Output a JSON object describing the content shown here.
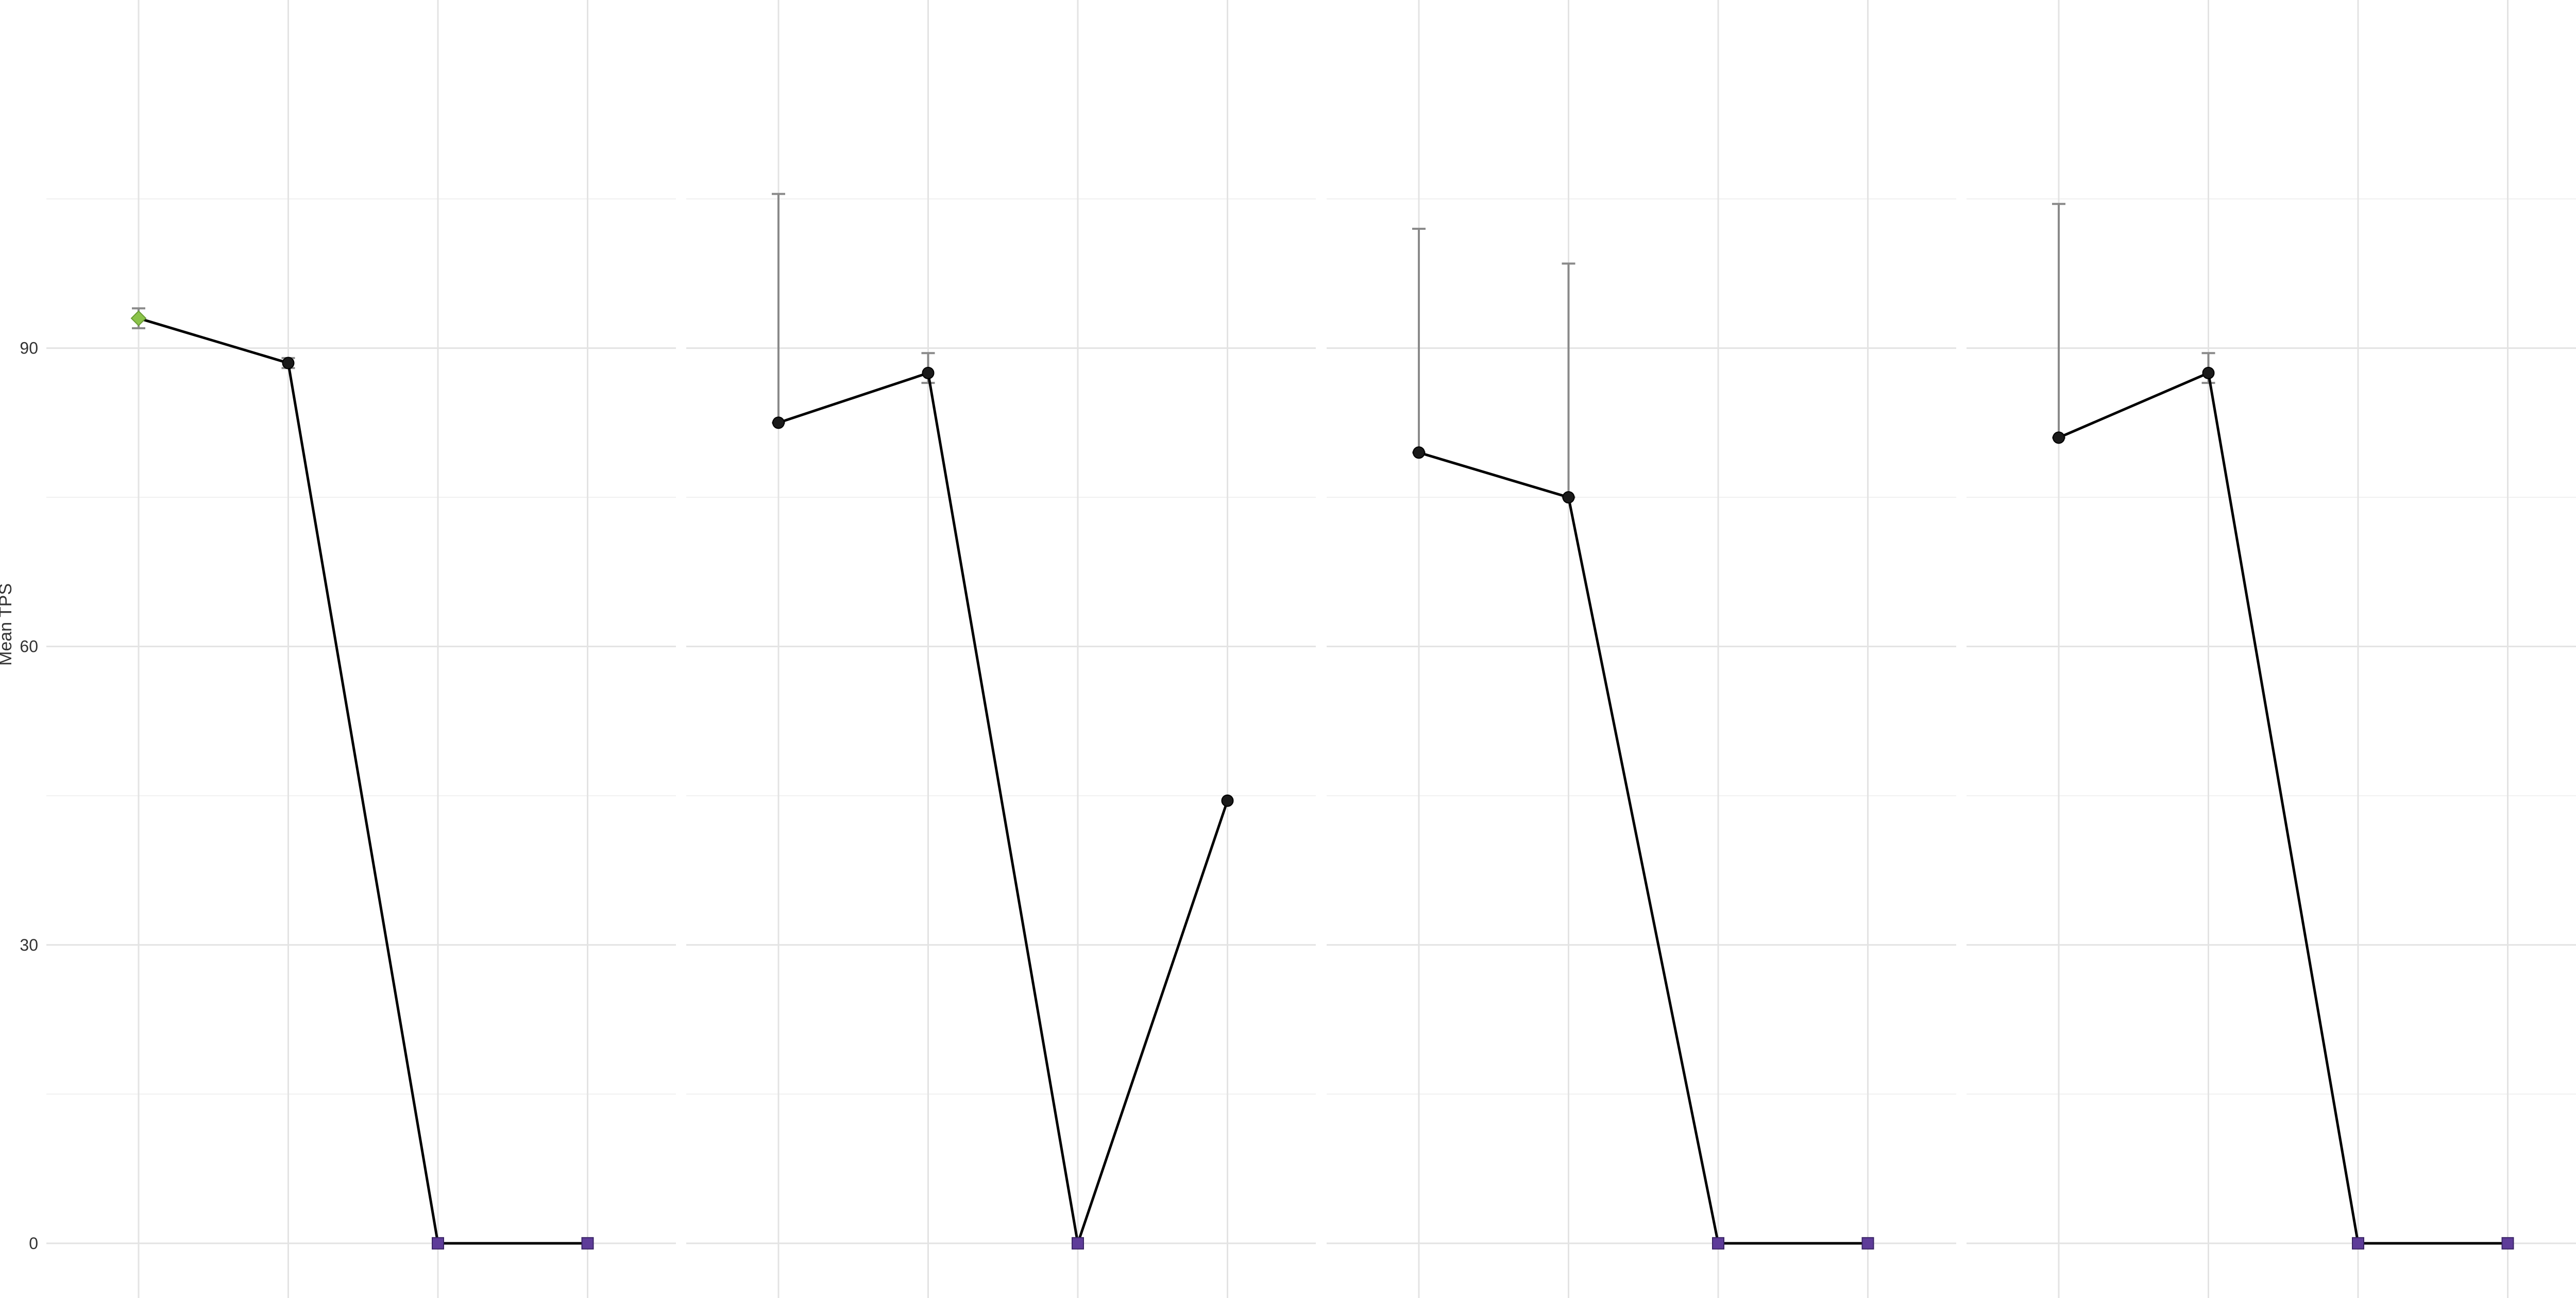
{
  "chart_data": {
    "type": "line",
    "ylabel": "Mean TPS",
    "ylim": [
      -5.5,
      125
    ],
    "yticks": [
      0,
      30,
      60,
      90
    ],
    "ytick_labels": [
      "0",
      "30",
      "60",
      "90"
    ],
    "x_positions": 4,
    "grid": true,
    "legend": "none",
    "panels": [
      {
        "points": [
          {
            "x": 1,
            "y": 93.0,
            "err_low": 92.0,
            "err_high": 94.0,
            "color": "#8bc34a",
            "shape": "diamond"
          },
          {
            "x": 2,
            "y": 88.5,
            "err_low": 88.0,
            "err_high": 89.0,
            "color": "#1a1a1a",
            "shape": "circle"
          },
          {
            "x": 3,
            "y": 0,
            "err_low": null,
            "err_high": null,
            "color": "#5e3c99",
            "shape": "square"
          },
          {
            "x": 4,
            "y": 0,
            "err_low": null,
            "err_high": null,
            "color": "#5e3c99",
            "shape": "square"
          }
        ]
      },
      {
        "points": [
          {
            "x": 1,
            "y": 82.5,
            "err_low": 82.5,
            "err_high": 105.5,
            "color": "#1a1a1a",
            "shape": "circle"
          },
          {
            "x": 2,
            "y": 87.5,
            "err_low": 86.5,
            "err_high": 89.5,
            "color": "#1a1a1a",
            "shape": "circle"
          },
          {
            "x": 3,
            "y": 0,
            "err_low": null,
            "err_high": null,
            "color": "#5e3c99",
            "shape": "square"
          },
          {
            "x": 4,
            "y": 44.5,
            "err_low": null,
            "err_high": null,
            "color": "#1a1a1a",
            "shape": "circle"
          }
        ]
      },
      {
        "points": [
          {
            "x": 1,
            "y": 79.5,
            "err_low": 79.5,
            "err_high": 102.0,
            "color": "#1a1a1a",
            "shape": "circle"
          },
          {
            "x": 2,
            "y": 75.0,
            "err_low": 75.0,
            "err_high": 98.5,
            "color": "#1a1a1a",
            "shape": "circle"
          },
          {
            "x": 3,
            "y": 0,
            "err_low": null,
            "err_high": null,
            "color": "#5e3c99",
            "shape": "square"
          },
          {
            "x": 4,
            "y": 0,
            "err_low": null,
            "err_high": null,
            "color": "#5e3c99",
            "shape": "square"
          }
        ]
      },
      {
        "points": [
          {
            "x": 1,
            "y": 81.0,
            "err_low": 81.0,
            "err_high": 104.5,
            "color": "#1a1a1a",
            "shape": "circle"
          },
          {
            "x": 2,
            "y": 87.5,
            "err_low": 86.5,
            "err_high": 89.5,
            "color": "#1a1a1a",
            "shape": "circle"
          },
          {
            "x": 3,
            "y": 0,
            "err_low": null,
            "err_high": null,
            "color": "#5e3c99",
            "shape": "square"
          },
          {
            "x": 4,
            "y": 0,
            "err_low": null,
            "err_high": null,
            "color": "#5e3c99",
            "shape": "square"
          }
        ]
      }
    ]
  }
}
